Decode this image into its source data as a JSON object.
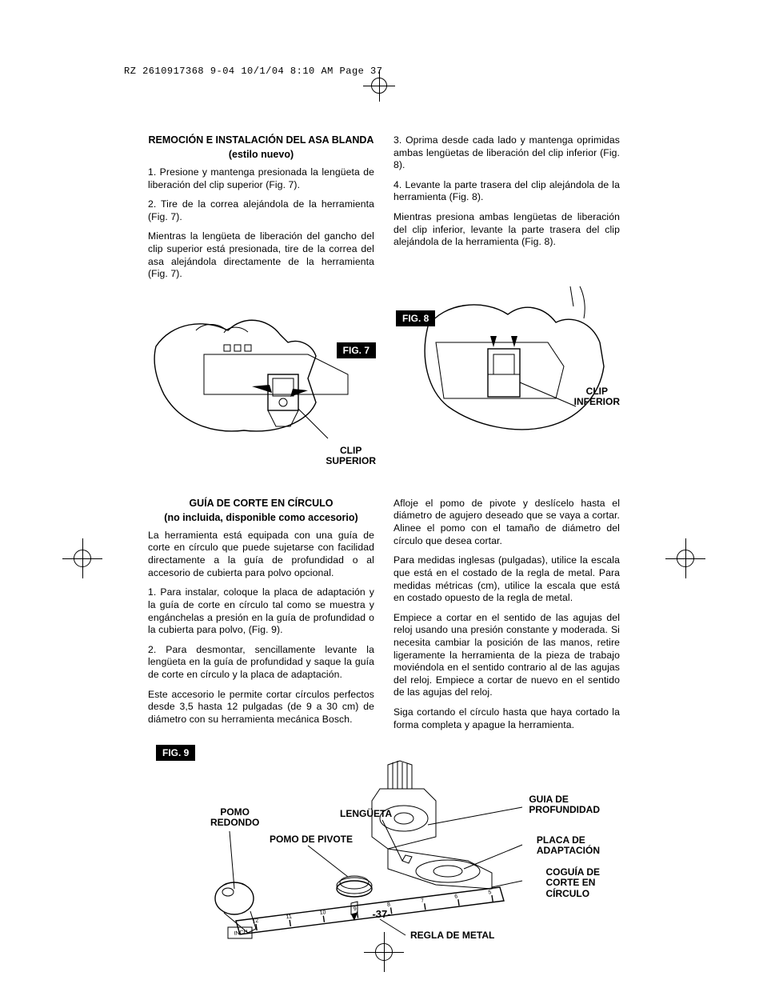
{
  "meta": {
    "header_line": "RZ 2610917368 9-04  10/1/04  8:10 AM  Page 37",
    "page_number": "-37-"
  },
  "section1": {
    "left": {
      "heading": "REMOCIÓN E INSTALACIÓN DEL ASA BLANDA",
      "subheading": "(estilo nuevo)",
      "p1": "1. Presione y mantenga presionada la lengüeta de liberación del clip superior (Fig. 7).",
      "p2": "2. Tire de la correa alejándola de la herramienta (Fig. 7).",
      "p3": "Mientras la lengüeta de liberación del gancho del clip superior está presionada, tire de la correa del asa alejándola directamente de la herramienta (Fig. 7)."
    },
    "right": {
      "p1": "3. Oprima desde cada lado y mantenga oprimidas ambas lengüetas de liberación del clip inferior (Fig. 8).",
      "p2": "4. Levante la parte trasera del clip alejándola de la herramienta (Fig. 8).",
      "p3": "Mientras presiona ambas lengüetas de liberación del clip inferior, levante la parte trasera del clip alejándola de la herramienta (Fig. 8)."
    },
    "fig7": {
      "label": "FIG. 7",
      "callout": "CLIP\nSUPERIOR"
    },
    "fig8": {
      "label": "FIG. 8",
      "callout": "CLIP\nINFERIOR"
    }
  },
  "section2": {
    "left": {
      "heading": "GUÍA DE CORTE EN CÍRCULO",
      "subheading": "(no incluida, disponible como accesorio)",
      "p1": "La herramienta está equipada con una guía de corte en círculo que puede sujetarse con facilidad directamente a la guía de profundidad o al accesorio de cubierta para polvo opcional.",
      "p2": "1. Para instalar, coloque la placa de adaptación y la guía de corte en círculo tal como se muestra y engánchelas a presión en la guía de profundidad o la cubierta para polvo, (Fig. 9).",
      "p3": "2. Para desmontar, sencillamente levante la lengüeta en la guía de profundidad y saque la guía de corte en círculo y la placa de adaptación.",
      "p4": "Este accesorio le permite cortar círculos perfectos desde 3,5 hasta 12 pulgadas (de 9 a 30 cm) de diámetro con su herramienta mecánica Bosch."
    },
    "right": {
      "p1": "Afloje el pomo de pivote y deslícelo hasta el diámetro de agujero deseado que se vaya a cortar. Alinee el pomo con el tamaño de diámetro del círculo que desea cortar.",
      "p2": "Para medidas inglesas (pulgadas), utilice la escala que está en el costado de la regla de metal. Para medidas métricas (cm), utilice la escala que está en costado opuesto de la regla de metal.",
      "p3": "Empiece a cortar en el sentido de las agujas del reloj usando una presión constante y moderada. Si necesita cambiar la posición de las manos, retire ligeramente la herramienta de la pieza de trabajo moviéndola en el sentido contrario al de las agujas del reloj. Empiece a cortar de nuevo en el sentido de las agujas del reloj.",
      "p4": "Siga cortando el círculo hasta que haya cortado la forma completa y apague la herramienta."
    },
    "fig9": {
      "label": "FIG. 9",
      "callouts": {
        "pomo_redondo": "POMO\nREDONDO",
        "pomo_pivote": "POMO DE PIVOTE",
        "lengueta": "LENGÜETA",
        "guia_prof": "GUIA DE\nPROFUNDIDAD",
        "placa": "PLACA DE\nADAPTACIÓN",
        "coguia": "COGUÍA DE\nCORTE EN\nCÍRCULO",
        "regla": "REGLA DE METAL"
      },
      "ruler_numbers": [
        "5",
        "6",
        "7",
        "8",
        "9",
        "10",
        "11",
        "12"
      ],
      "ruler_unit": "INCH"
    }
  }
}
